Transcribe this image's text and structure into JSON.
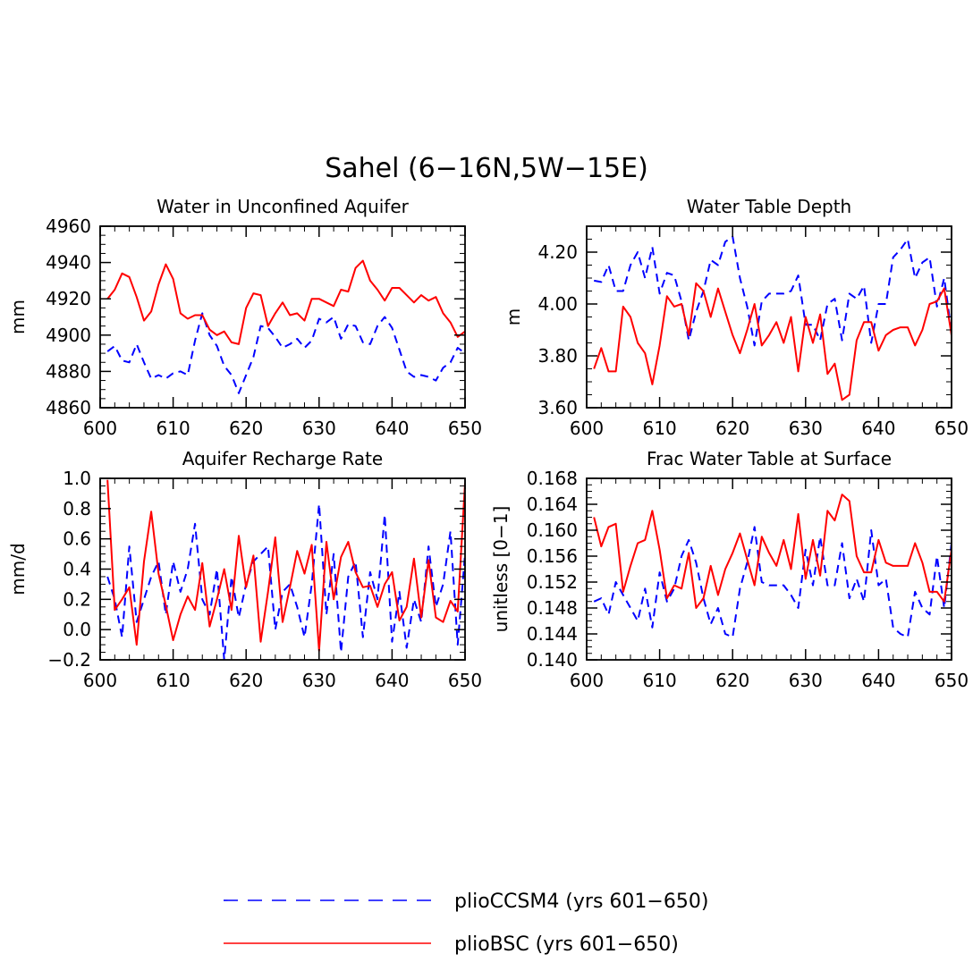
{
  "title": "Sahel (6−16N,5W−15E)",
  "colors": {
    "ccsm4": "#0000ff",
    "bsc": "#ff0000"
  },
  "legend": [
    {
      "key": "ccsm4",
      "label": "plioCCSM4 (yrs 601−650)",
      "style": "dashed"
    },
    {
      "key": "bsc",
      "label": "plioBSC (yrs 601−650)",
      "style": "solid"
    }
  ],
  "chart_data": [
    {
      "type": "line",
      "title": "Water in Unconfined Aquifer",
      "ylabel": "mm",
      "xlabel": "",
      "xlim": [
        600,
        650
      ],
      "ylim": [
        4860,
        4960
      ],
      "xticks": [
        "600",
        "610",
        "620",
        "630",
        "640",
        "650"
      ],
      "yticks": [
        "4860",
        "4880",
        "4900",
        "4920",
        "4940",
        "4960"
      ],
      "x": [
        601,
        602,
        603,
        604,
        605,
        606,
        607,
        608,
        609,
        610,
        611,
        612,
        613,
        614,
        615,
        616,
        617,
        618,
        619,
        620,
        621,
        622,
        623,
        624,
        625,
        626,
        627,
        628,
        629,
        630,
        631,
        632,
        633,
        634,
        635,
        636,
        637,
        638,
        639,
        640,
        641,
        642,
        643,
        644,
        645,
        646,
        647,
        648,
        649,
        650
      ],
      "series": [
        {
          "name": "plioCCSM4 (yrs 601−650)",
          "key": "ccsm4",
          "values": [
            4891,
            4894,
            4886,
            4885,
            4895,
            4885,
            4876,
            4878,
            4876,
            4879,
            4880,
            4878,
            4897,
            4912,
            4900,
            4894,
            4883,
            4878,
            4868,
            4878,
            4888,
            4905,
            4904,
            4899,
            4893,
            4895,
            4898,
            4893,
            4897,
            4909,
            4907,
            4910,
            4898,
            4906,
            4905,
            4896,
            4895,
            4905,
            4910,
            4904,
            4892,
            4880,
            4877,
            4878,
            4877,
            4875,
            4882,
            4885,
            4893,
            4890
          ]
        },
        {
          "name": "plioBSC (yrs 601−650)",
          "key": "bsc",
          "values": [
            4920,
            4925,
            4934,
            4932,
            4921,
            4908,
            4913,
            4928,
            4939,
            4931,
            4912,
            4909,
            4911,
            4911,
            4903,
            4900,
            4902,
            4896,
            4895,
            4915,
            4923,
            4922,
            4905,
            4912,
            4918,
            4911,
            4912,
            4908,
            4920,
            4920,
            4918,
            4916,
            4925,
            4924,
            4937,
            4941,
            4930,
            4925,
            4919,
            4926,
            4926,
            4922,
            4918,
            4922,
            4919,
            4921,
            4912,
            4907,
            4899,
            4902
          ]
        }
      ]
    },
    {
      "type": "line",
      "title": "Water Table Depth",
      "ylabel": "m",
      "xlabel": "",
      "xlim": [
        600,
        650
      ],
      "ylim": [
        3.6,
        4.3
      ],
      "xticks": [
        "600",
        "610",
        "620",
        "630",
        "640",
        "650"
      ],
      "yticks": [
        "3.60",
        "3.80",
        "4.00",
        "4.20"
      ],
      "x": [
        601,
        602,
        603,
        604,
        605,
        606,
        607,
        608,
        609,
        610,
        611,
        612,
        613,
        614,
        615,
        616,
        617,
        618,
        619,
        620,
        621,
        622,
        623,
        624,
        625,
        626,
        627,
        628,
        629,
        630,
        631,
        632,
        633,
        634,
        635,
        636,
        637,
        638,
        639,
        640,
        641,
        642,
        643,
        644,
        645,
        646,
        647,
        648,
        649,
        650
      ],
      "series": [
        {
          "name": "plioCCSM4 (yrs 601−650)",
          "key": "ccsm4",
          "values": [
            4.09,
            4.085,
            4.15,
            4.05,
            4.05,
            4.15,
            4.2,
            4.1,
            4.22,
            4.04,
            4.12,
            4.11,
            4.01,
            3.86,
            3.97,
            4.05,
            4.17,
            4.15,
            4.24,
            4.26,
            4.1,
            3.99,
            3.84,
            4.01,
            4.04,
            4.04,
            4.04,
            4.05,
            4.11,
            3.92,
            3.92,
            3.86,
            4.0,
            4.02,
            3.86,
            4.04,
            4.02,
            4.07,
            3.85,
            4.0,
            4.0,
            4.18,
            4.21,
            4.25,
            4.1,
            4.16,
            4.18,
            3.99,
            4.1,
            3.89
          ]
        },
        {
          "name": "plioBSC (yrs 601−650)",
          "key": "bsc",
          "values": [
            3.75,
            3.83,
            3.74,
            3.74,
            3.99,
            3.95,
            3.85,
            3.81,
            3.69,
            3.84,
            4.03,
            3.99,
            4.0,
            3.88,
            4.08,
            4.05,
            3.95,
            4.06,
            3.97,
            3.88,
            3.81,
            3.9,
            4.0,
            3.84,
            3.88,
            3.93,
            3.85,
            3.95,
            3.74,
            3.95,
            3.85,
            3.96,
            3.73,
            3.77,
            3.63,
            3.65,
            3.86,
            3.93,
            3.93,
            3.82,
            3.88,
            3.9,
            3.91,
            3.91,
            3.84,
            3.9,
            4.0,
            4.01,
            4.06,
            3.88
          ]
        }
      ]
    },
    {
      "type": "line",
      "title": "Aquifer Recharge Rate",
      "ylabel": "mm/d",
      "xlabel": "",
      "xlim": [
        600,
        650
      ],
      "ylim": [
        -0.2,
        1.0
      ],
      "xticks": [
        "600",
        "610",
        "620",
        "630",
        "640",
        "650"
      ],
      "yticks": [
        "−0.2",
        "0.0",
        "0.2",
        "0.4",
        "0.6",
        "0.8",
        "1.0"
      ],
      "x": [
        601,
        602,
        603,
        604,
        605,
        606,
        607,
        608,
        609,
        610,
        611,
        612,
        613,
        614,
        615,
        616,
        617,
        618,
        619,
        620,
        621,
        622,
        623,
        624,
        625,
        626,
        627,
        628,
        629,
        630,
        631,
        632,
        633,
        634,
        635,
        636,
        637,
        638,
        639,
        640,
        641,
        642,
        643,
        644,
        645,
        646,
        647,
        648,
        649,
        650
      ],
      "series": [
        {
          "name": "plioCCSM4 (yrs 601−650)",
          "key": "ccsm4",
          "values": [
            0.35,
            0.2,
            -0.05,
            0.55,
            0.05,
            0.2,
            0.35,
            0.45,
            0.1,
            0.45,
            0.25,
            0.4,
            0.7,
            0.2,
            0.1,
            0.4,
            -0.2,
            0.35,
            0.08,
            0.3,
            0.45,
            0.5,
            0.55,
            0.0,
            0.25,
            0.3,
            0.15,
            -0.05,
            0.3,
            0.83,
            0.1,
            0.5,
            -0.15,
            0.35,
            0.45,
            -0.05,
            0.38,
            0.2,
            0.76,
            -0.08,
            0.25,
            -0.12,
            0.2,
            0.05,
            0.55,
            0.15,
            0.3,
            0.65,
            -0.1,
            0.5
          ]
        },
        {
          "name": "plioBSC (yrs 601−650)",
          "key": "bsc",
          "values": [
            0.99,
            0.13,
            0.2,
            0.28,
            -0.1,
            0.45,
            0.78,
            0.37,
            0.16,
            -0.07,
            0.1,
            0.22,
            0.13,
            0.44,
            0.02,
            0.2,
            0.4,
            0.13,
            0.62,
            0.28,
            0.49,
            -0.08,
            0.25,
            0.61,
            0.05,
            0.28,
            0.52,
            0.37,
            0.56,
            -0.14,
            0.58,
            0.2,
            0.48,
            0.58,
            0.38,
            0.28,
            0.29,
            0.15,
            0.3,
            0.38,
            0.06,
            0.15,
            0.47,
            0.08,
            0.46,
            0.08,
            0.05,
            0.19,
            0.12,
            0.97
          ]
        }
      ]
    },
    {
      "type": "line",
      "title": "Frac Water Table at Surface",
      "ylabel": "unitless [0−1]",
      "xlabel": "",
      "xlim": [
        600,
        650
      ],
      "ylim": [
        0.14,
        0.168
      ],
      "xticks": [
        "600",
        "610",
        "620",
        "630",
        "640",
        "650"
      ],
      "yticks": [
        "0.140",
        "0.144",
        "0.148",
        "0.152",
        "0.156",
        "0.160",
        "0.164",
        "0.168"
      ],
      "x": [
        601,
        602,
        603,
        604,
        605,
        606,
        607,
        608,
        609,
        610,
        611,
        612,
        613,
        614,
        615,
        616,
        617,
        618,
        619,
        620,
        621,
        622,
        623,
        624,
        625,
        626,
        627,
        628,
        629,
        630,
        631,
        632,
        633,
        634,
        635,
        636,
        637,
        638,
        639,
        640,
        641,
        642,
        643,
        644,
        645,
        646,
        647,
        648,
        649,
        650
      ],
      "series": [
        {
          "name": "plioCCSM4 (yrs 601−650)",
          "key": "ccsm4",
          "values": [
            0.149,
            0.1495,
            0.147,
            0.152,
            0.15,
            0.148,
            0.146,
            0.151,
            0.145,
            0.1535,
            0.149,
            0.151,
            0.156,
            0.1585,
            0.155,
            0.1495,
            0.1455,
            0.148,
            0.144,
            0.1435,
            0.151,
            0.155,
            0.1605,
            0.152,
            0.1515,
            0.1515,
            0.1515,
            0.15,
            0.148,
            0.157,
            0.1515,
            0.159,
            0.1515,
            0.1515,
            0.158,
            0.1495,
            0.1525,
            0.149,
            0.16,
            0.1515,
            0.1525,
            0.145,
            0.144,
            0.1435,
            0.1505,
            0.148,
            0.147,
            0.156,
            0.148,
            0.158
          ]
        },
        {
          "name": "plioBSC (yrs 601−650)",
          "key": "bsc",
          "values": [
            0.162,
            0.1575,
            0.1605,
            0.161,
            0.1505,
            0.1545,
            0.158,
            0.1585,
            0.163,
            0.157,
            0.1495,
            0.1515,
            0.151,
            0.1565,
            0.148,
            0.1495,
            0.1545,
            0.15,
            0.154,
            0.1565,
            0.1595,
            0.1555,
            0.1515,
            0.159,
            0.1565,
            0.1545,
            0.1585,
            0.154,
            0.1625,
            0.1525,
            0.1585,
            0.153,
            0.163,
            0.1615,
            0.1655,
            0.1645,
            0.156,
            0.1535,
            0.1535,
            0.1585,
            0.155,
            0.1545,
            0.1545,
            0.1545,
            0.158,
            0.155,
            0.1505,
            0.1505,
            0.149,
            0.157
          ]
        }
      ]
    }
  ]
}
